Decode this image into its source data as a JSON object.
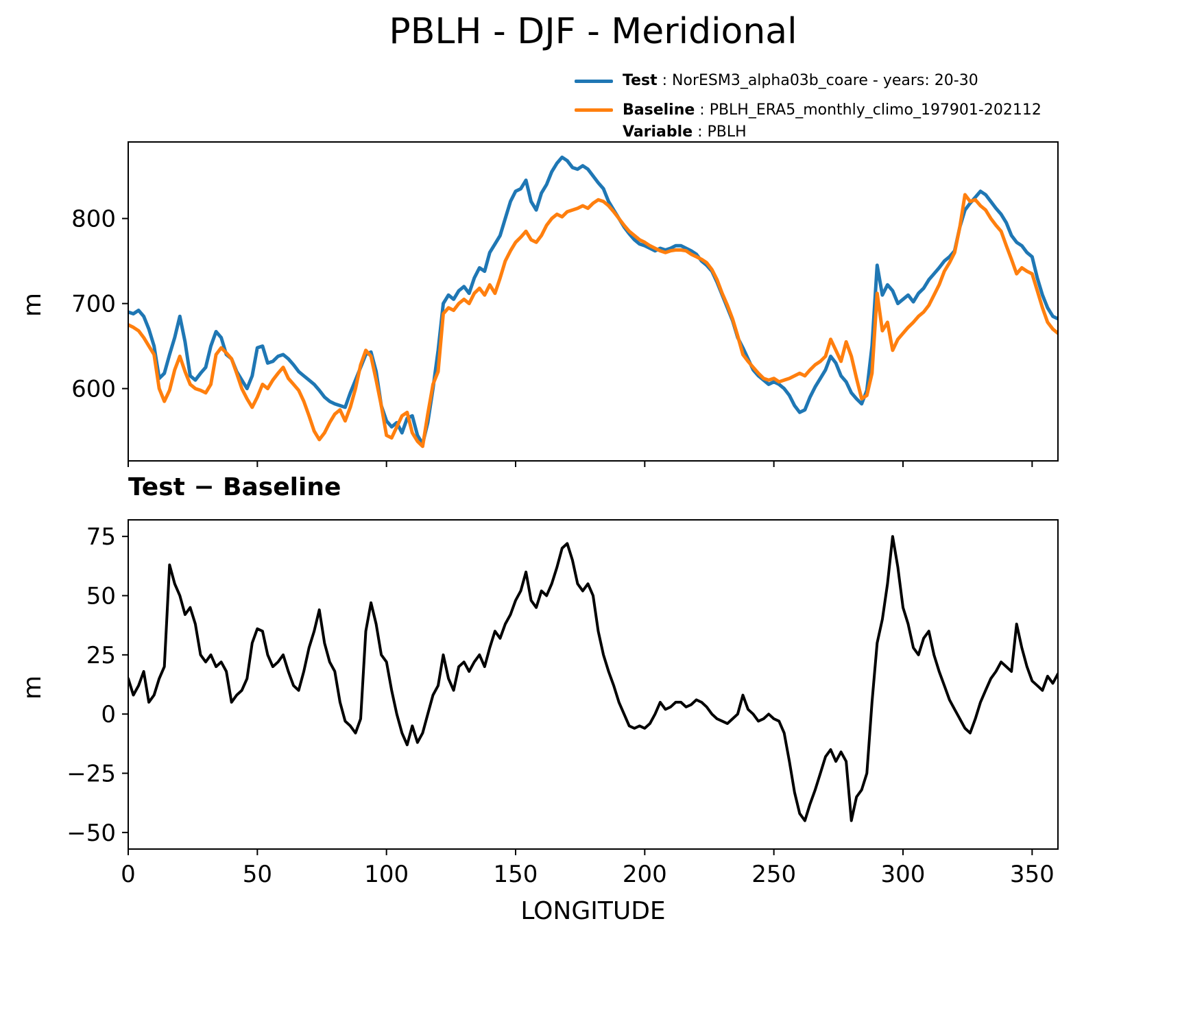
{
  "header": {
    "title": "PBLH - DJF - Meridional"
  },
  "legend": {
    "items": [
      {
        "name": "Test",
        "rest": " : NorESM3_alpha03b_coare - years: 20-30"
      },
      {
        "name": "Baseline",
        "rest": " : PBLH_ERA5_monthly_climo_197901-202112"
      },
      {
        "name": "Variable",
        "rest": " : PBLH"
      }
    ]
  },
  "chart_data": [
    {
      "type": "line",
      "title": "PBLH - DJF - Meridional",
      "ylabel": "m",
      "xlabel": "",
      "xlim": [
        0,
        360
      ],
      "ylim": [
        515,
        890
      ],
      "grid": false,
      "legend_position": "above-right",
      "x_start": 0,
      "x_step": 2,
      "xticks": {
        "values": [
          0,
          50,
          100,
          150,
          200,
          250,
          300,
          350
        ],
        "labels": null
      },
      "yticks": {
        "values": [
          600,
          700,
          800
        ],
        "labels": [
          "600",
          "700",
          "800"
        ]
      },
      "series": [
        {
          "name": "Test",
          "label": "NorESM3_alpha03b_coare - years: 20-30",
          "color": "#1f77b4",
          "values": [
            690,
            688,
            692,
            685,
            670,
            650,
            612,
            618,
            640,
            660,
            685,
            655,
            615,
            610,
            618,
            625,
            650,
            667,
            660,
            640,
            635,
            620,
            610,
            600,
            615,
            648,
            650,
            630,
            632,
            638,
            640,
            635,
            628,
            620,
            615,
            610,
            605,
            598,
            590,
            585,
            582,
            580,
            578,
            595,
            610,
            625,
            640,
            643,
            620,
            580,
            562,
            555,
            560,
            548,
            565,
            568,
            545,
            535,
            560,
            600,
            645,
            700,
            710,
            705,
            715,
            720,
            712,
            730,
            742,
            738,
            760,
            770,
            780,
            800,
            820,
            832,
            835,
            845,
            820,
            810,
            830,
            840,
            855,
            865,
            872,
            868,
            860,
            858,
            862,
            858,
            850,
            842,
            835,
            820,
            810,
            800,
            790,
            782,
            775,
            770,
            768,
            765,
            762,
            765,
            763,
            765,
            768,
            768,
            765,
            762,
            758,
            750,
            745,
            738,
            725,
            710,
            695,
            680,
            660,
            648,
            635,
            622,
            615,
            610,
            605,
            608,
            605,
            600,
            592,
            580,
            572,
            575,
            590,
            602,
            612,
            622,
            638,
            630,
            615,
            608,
            595,
            588,
            582,
            598,
            650,
            745,
            710,
            722,
            715,
            700,
            705,
            710,
            702,
            712,
            718,
            728,
            735,
            742,
            750,
            755,
            762,
            790,
            810,
            818,
            825,
            832,
            828,
            820,
            812,
            805,
            795,
            780,
            772,
            768,
            760,
            755,
            730,
            710,
            695,
            685,
            682
          ]
        },
        {
          "name": "Baseline",
          "label": "PBLH_ERA5_monthly_climo_197901-202112",
          "color": "#ff7f0e",
          "values": [
            675,
            672,
            668,
            660,
            650,
            640,
            600,
            585,
            598,
            622,
            638,
            620,
            605,
            600,
            598,
            595,
            605,
            640,
            648,
            642,
            635,
            618,
            600,
            588,
            578,
            590,
            605,
            600,
            610,
            618,
            625,
            612,
            605,
            598,
            585,
            568,
            550,
            540,
            548,
            560,
            570,
            575,
            562,
            578,
            600,
            628,
            645,
            638,
            610,
            580,
            545,
            542,
            555,
            568,
            572,
            548,
            538,
            532,
            570,
            605,
            620,
            688,
            695,
            692,
            700,
            705,
            700,
            712,
            718,
            710,
            722,
            712,
            730,
            750,
            762,
            772,
            778,
            785,
            775,
            772,
            780,
            792,
            800,
            805,
            802,
            808,
            810,
            812,
            815,
            812,
            818,
            822,
            820,
            815,
            808,
            800,
            792,
            785,
            780,
            775,
            772,
            768,
            765,
            762,
            760,
            762,
            763,
            763,
            762,
            758,
            755,
            752,
            748,
            740,
            728,
            712,
            698,
            682,
            662,
            640,
            632,
            625,
            618,
            612,
            610,
            612,
            608,
            610,
            612,
            615,
            618,
            615,
            622,
            628,
            632,
            638,
            658,
            645,
            632,
            655,
            638,
            612,
            588,
            592,
            618,
            712,
            668,
            678,
            645,
            658,
            665,
            672,
            678,
            685,
            690,
            698,
            710,
            722,
            738,
            748,
            760,
            790,
            828,
            820,
            822,
            815,
            810,
            800,
            792,
            785,
            768,
            752,
            735,
            742,
            738,
            735,
            715,
            695,
            678,
            670,
            665
          ]
        }
      ]
    },
    {
      "type": "line",
      "title": "Test − Baseline",
      "ylabel": "m",
      "xlabel": "LONGITUDE",
      "xlim": [
        0,
        360
      ],
      "ylim": [
        -57,
        82
      ],
      "grid": false,
      "x_start": 0,
      "x_step": 2,
      "xticks": {
        "values": [
          0,
          50,
          100,
          150,
          200,
          250,
          300,
          350
        ],
        "labels": [
          "0",
          "50",
          "100",
          "150",
          "200",
          "250",
          "300",
          "350"
        ]
      },
      "yticks": {
        "values": [
          -50,
          -25,
          0,
          25,
          50,
          75
        ],
        "labels": [
          "−50",
          "−25",
          "0",
          "25",
          "50",
          "75"
        ]
      },
      "series": [
        {
          "name": "Test − Baseline",
          "color": "#000000",
          "values": [
            15,
            8,
            12,
            18,
            5,
            8,
            15,
            20,
            63,
            55,
            50,
            42,
            45,
            38,
            25,
            22,
            25,
            20,
            22,
            18,
            5,
            8,
            10,
            15,
            30,
            36,
            35,
            25,
            20,
            22,
            25,
            18,
            12,
            10,
            18,
            28,
            35,
            44,
            30,
            22,
            18,
            5,
            -3,
            -5,
            -8,
            -2,
            35,
            47,
            38,
            25,
            22,
            10,
            0,
            -8,
            -13,
            -5,
            -12,
            -8,
            0,
            8,
            12,
            25,
            15,
            10,
            20,
            22,
            18,
            22,
            25,
            20,
            28,
            35,
            32,
            38,
            42,
            48,
            52,
            60,
            48,
            45,
            52,
            50,
            55,
            62,
            70,
            72,
            65,
            55,
            52,
            55,
            50,
            35,
            25,
            18,
            12,
            5,
            0,
            -5,
            -6,
            -5,
            -6,
            -4,
            0,
            5,
            2,
            3,
            5,
            5,
            3,
            4,
            6,
            5,
            3,
            0,
            -2,
            -3,
            -4,
            -2,
            0,
            8,
            2,
            0,
            -3,
            -2,
            0,
            -2,
            -3,
            -8,
            -20,
            -33,
            -42,
            -45,
            -38,
            -32,
            -25,
            -18,
            -15,
            -20,
            -16,
            -20,
            -45,
            -35,
            -32,
            -25,
            5,
            30,
            40,
            55,
            75,
            62,
            45,
            38,
            28,
            25,
            32,
            35,
            25,
            18,
            12,
            6,
            2,
            -2,
            -6,
            -8,
            -2,
            5,
            10,
            15,
            18,
            22,
            20,
            18,
            38,
            28,
            20,
            14,
            12,
            10,
            16,
            13,
            17
          ]
        }
      ]
    }
  ]
}
